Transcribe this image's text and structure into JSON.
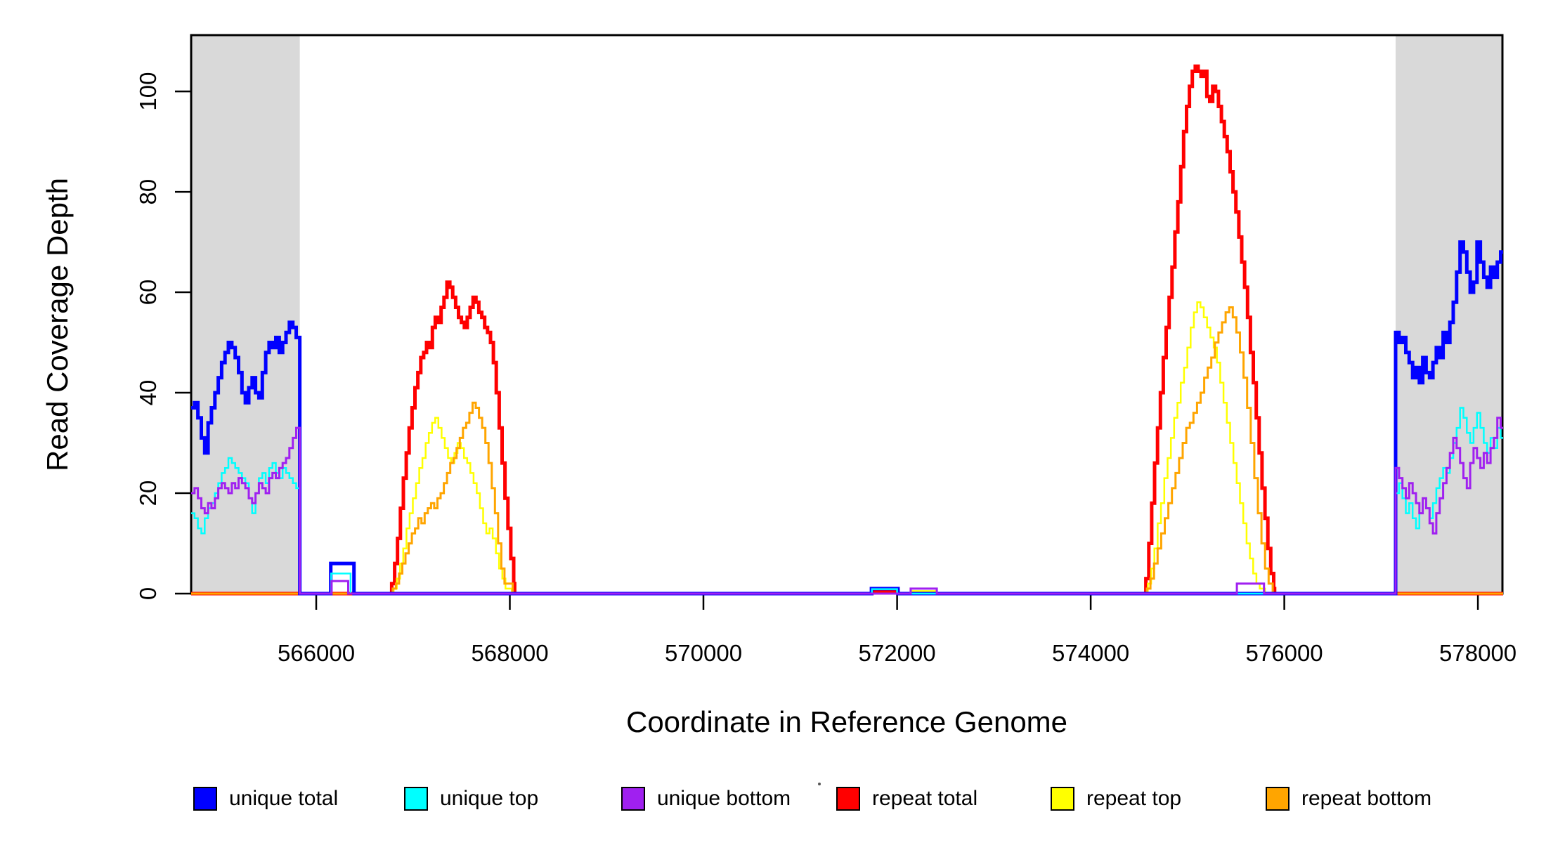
{
  "figure": {
    "x_title": "Coordinate in Reference Genome",
    "y_title": "Read Coverage Depth"
  },
  "legend": {
    "items": [
      {
        "label": "unique total",
        "color": "#0000FF"
      },
      {
        "label": "unique top",
        "color": "#00FFFF"
      },
      {
        "label": "unique bottom",
        "color": "#A020F0"
      },
      {
        "label": "repeat total",
        "color": "#FF0000"
      },
      {
        "label": "repeat top",
        "color": "#FFFF00"
      },
      {
        "label": "repeat bottom",
        "color": "#FFA500"
      }
    ]
  },
  "chart_data": {
    "type": "line",
    "step": true,
    "title": "",
    "xlabel": "Coordinate in Reference Genome",
    "ylabel": "Read Coverage Depth",
    "xlim": [
      564708,
      578253
    ],
    "ylim": [
      0,
      111.2
    ],
    "x_ticks": [
      566000,
      568000,
      570000,
      572000,
      574000,
      576000,
      578000
    ],
    "x_tick_labels": [
      "566000",
      "568000",
      "570000",
      "572000",
      "574000",
      "576000",
      "578000"
    ],
    "y_ticks": [
      0,
      20,
      40,
      60,
      80,
      100
    ],
    "y_tick_labels": [
      "0",
      "20",
      "40",
      "60",
      "80",
      "100"
    ],
    "grid": false,
    "legend_position": "bottom",
    "shade_color": "#D9D9D9",
    "shaded_regions": [
      [
        564708,
        565830
      ],
      [
        577150,
        578253
      ]
    ],
    "series": [
      {
        "name": "repeat total",
        "color": "#FF0000",
        "width": 5,
        "segments": [
          {
            "x": 564708,
            "dx": 0,
            "v": [
              0
            ]
          },
          {
            "x": 566780,
            "dx": 30,
            "v": [
              2,
              6,
              11,
              17,
              23,
              28,
              33,
              37,
              41,
              44,
              47,
              48,
              50,
              49,
              53,
              55,
              54,
              57,
              59,
              62,
              61,
              59,
              57,
              55,
              54,
              53,
              55,
              57,
              59,
              58,
              56,
              55,
              53,
              52,
              50,
              46,
              40,
              33,
              26,
              19,
              13,
              7,
              2
            ]
          },
          {
            "x": 568050,
            "dx": 0,
            "v": [
              0
            ]
          },
          {
            "x": 571740,
            "dx": 0,
            "v": [
              0.5
            ]
          },
          {
            "x": 572010,
            "dx": 0,
            "v": [
              0
            ]
          },
          {
            "x": 574570,
            "dx": 30,
            "v": [
              3,
              10,
              18,
              26,
              33,
              40,
              47,
              53,
              59,
              65,
              72,
              78,
              85,
              92,
              97,
              101,
              104,
              105,
              104,
              103,
              104,
              99,
              98,
              101,
              100,
              97,
              94,
              91,
              88,
              84,
              80,
              76,
              71,
              66,
              61,
              55,
              48,
              42,
              35,
              28,
              21,
              15,
              9,
              4,
              1
            ]
          },
          {
            "x": 575900,
            "dx": 0,
            "v": [
              0
            ]
          }
        ]
      },
      {
        "name": "repeat top",
        "color": "#FFFF00",
        "width": 2.5,
        "segments": [
          {
            "x": 564708,
            "dx": 0,
            "v": [
              0
            ]
          },
          {
            "x": 566800,
            "dx": 33,
            "v": [
              1,
              3,
              6,
              9,
              13,
              16,
              19,
              22,
              25,
              27,
              30,
              32,
              34,
              35,
              33,
              31,
              29,
              27,
              26,
              28,
              30,
              29,
              27,
              26,
              24,
              22,
              20,
              17,
              14,
              12,
              13,
              11,
              8,
              5,
              3,
              1
            ]
          },
          {
            "x": 568020,
            "dx": 0,
            "v": [
              0
            ]
          },
          {
            "x": 572145,
            "dx": 0,
            "v": [
              0.5
            ]
          },
          {
            "x": 572405,
            "dx": 0,
            "v": [
              0
            ]
          },
          {
            "x": 574590,
            "dx": 34,
            "v": [
              2,
              5,
              9,
              14,
              18,
              23,
              27,
              31,
              35,
              38,
              42,
              45,
              49,
              53,
              56,
              58,
              57,
              55,
              53,
              51,
              49,
              46,
              42,
              38,
              34,
              30,
              26,
              22,
              18,
              14,
              10,
              7,
              4,
              2,
              1
            ]
          },
          {
            "x": 575800,
            "dx": 0,
            "v": [
              0
            ]
          }
        ]
      },
      {
        "name": "repeat bottom",
        "color": "#FFA500",
        "width": 3,
        "segments": [
          {
            "x": 564708,
            "dx": 0,
            "v": [
              0
            ]
          },
          {
            "x": 566790,
            "dx": 33,
            "v": [
              1,
              2,
              4,
              6,
              8,
              10,
              12,
              13,
              15,
              14,
              16,
              17,
              18,
              17,
              19,
              20,
              22,
              24,
              26,
              27,
              29,
              31,
              33,
              34,
              36,
              38,
              37,
              35,
              33,
              30,
              26,
              21,
              16,
              10,
              5,
              2
            ]
          },
          {
            "x": 568030,
            "dx": 0,
            "v": [
              0
            ]
          },
          {
            "x": 574580,
            "dx": 37,
            "v": [
              1,
              3,
              6,
              9,
              12,
              15,
              18,
              21,
              24,
              27,
              30,
              33,
              34,
              36,
              38,
              40,
              43,
              45,
              47,
              50,
              52,
              54,
              56,
              57,
              55,
              52,
              48,
              43,
              37,
              30,
              23,
              16,
              10,
              5,
              2
            ]
          },
          {
            "x": 575880,
            "dx": 0,
            "v": [
              0
            ]
          }
        ]
      },
      {
        "name": "unique total",
        "color": "#0000FF",
        "width": 5,
        "segments": [
          {
            "x": 564708,
            "dx": 35,
            "v": [
              37,
              38,
              35,
              31,
              28,
              34,
              37,
              40,
              43,
              46,
              48,
              50,
              49,
              47,
              44,
              40,
              38,
              41,
              43,
              40,
              39,
              44,
              48,
              50,
              49,
              51,
              48,
              50,
              52,
              54,
              53,
              51
            ]
          },
          {
            "x": 565830,
            "dx": 0,
            "v": [
              0
            ]
          },
          {
            "x": 566150,
            "dx": 0,
            "v": [
              6
            ]
          },
          {
            "x": 566390,
            "dx": 0,
            "v": [
              0
            ]
          },
          {
            "x": 571735,
            "dx": 0,
            "v": [
              1
            ]
          },
          {
            "x": 572010,
            "dx": 0,
            "v": [
              0
            ]
          },
          {
            "x": 577150,
            "dx": 35,
            "v": [
              52,
              50,
              51,
              48,
              46,
              43,
              45,
              42,
              47,
              44,
              43,
              46,
              49,
              47,
              52,
              50,
              54,
              58,
              64,
              70,
              68,
              64,
              60,
              62,
              70,
              66,
              63,
              61,
              65,
              63,
              66,
              68
            ]
          }
        ]
      },
      {
        "name": "unique top",
        "color": "#00FFFF",
        "width": 2.5,
        "segments": [
          {
            "x": 564708,
            "dx": 35,
            "v": [
              16,
              15,
              13,
              12,
              15,
              17,
              18,
              20,
              22,
              24,
              25,
              27,
              26,
              25,
              24,
              23,
              22,
              19,
              16,
              20,
              23,
              24,
              22,
              25,
              26,
              24,
              23,
              25,
              24,
              23,
              22,
              21
            ]
          },
          {
            "x": 565830,
            "dx": 0,
            "v": [
              0
            ]
          },
          {
            "x": 566155,
            "dx": 0,
            "v": [
              4
            ]
          },
          {
            "x": 566355,
            "dx": 0,
            "v": [
              0
            ]
          },
          {
            "x": 571740,
            "dx": 0,
            "v": [
              0.9
            ]
          },
          {
            "x": 572000,
            "dx": 0,
            "v": [
              0
            ]
          },
          {
            "x": 577150,
            "dx": 35,
            "v": [
              20,
              22,
              19,
              16,
              18,
              15,
              13,
              16,
              19,
              17,
              15,
              18,
              21,
              23,
              25,
              24,
              27,
              30,
              33,
              37,
              35,
              32,
              30,
              33,
              36,
              33,
              30,
              28,
              31,
              29,
              33,
              31
            ]
          }
        ]
      },
      {
        "name": "unique bottom",
        "color": "#A020F0",
        "width": 3,
        "segments": [
          {
            "x": 564708,
            "dx": 35,
            "v": [
              20,
              21,
              19,
              17,
              16,
              18,
              17,
              19,
              21,
              22,
              21,
              20,
              22,
              21,
              23,
              22,
              21,
              19,
              18,
              20,
              22,
              21,
              20,
              23,
              24,
              23,
              25,
              26,
              27,
              29,
              31,
              33
            ]
          },
          {
            "x": 565830,
            "dx": 0,
            "v": [
              0
            ]
          },
          {
            "x": 566158,
            "dx": 0,
            "v": [
              2.5
            ]
          },
          {
            "x": 566330,
            "dx": 0,
            "v": [
              0
            ]
          },
          {
            "x": 572140,
            "dx": 0,
            "v": [
              1
            ]
          },
          {
            "x": 572410,
            "dx": 0,
            "v": [
              0
            ]
          },
          {
            "x": 575510,
            "dx": 0,
            "v": [
              2
            ]
          },
          {
            "x": 575790,
            "dx": 0,
            "v": [
              0
            ]
          },
          {
            "x": 577150,
            "dx": 35,
            "v": [
              25,
              23,
              21,
              19,
              22,
              20,
              18,
              16,
              19,
              17,
              14,
              12,
              16,
              19,
              22,
              25,
              28,
              31,
              29,
              26,
              23,
              21,
              26,
              29,
              27,
              25,
              28,
              26,
              29,
              31,
              35,
              33
            ]
          }
        ]
      }
    ]
  }
}
